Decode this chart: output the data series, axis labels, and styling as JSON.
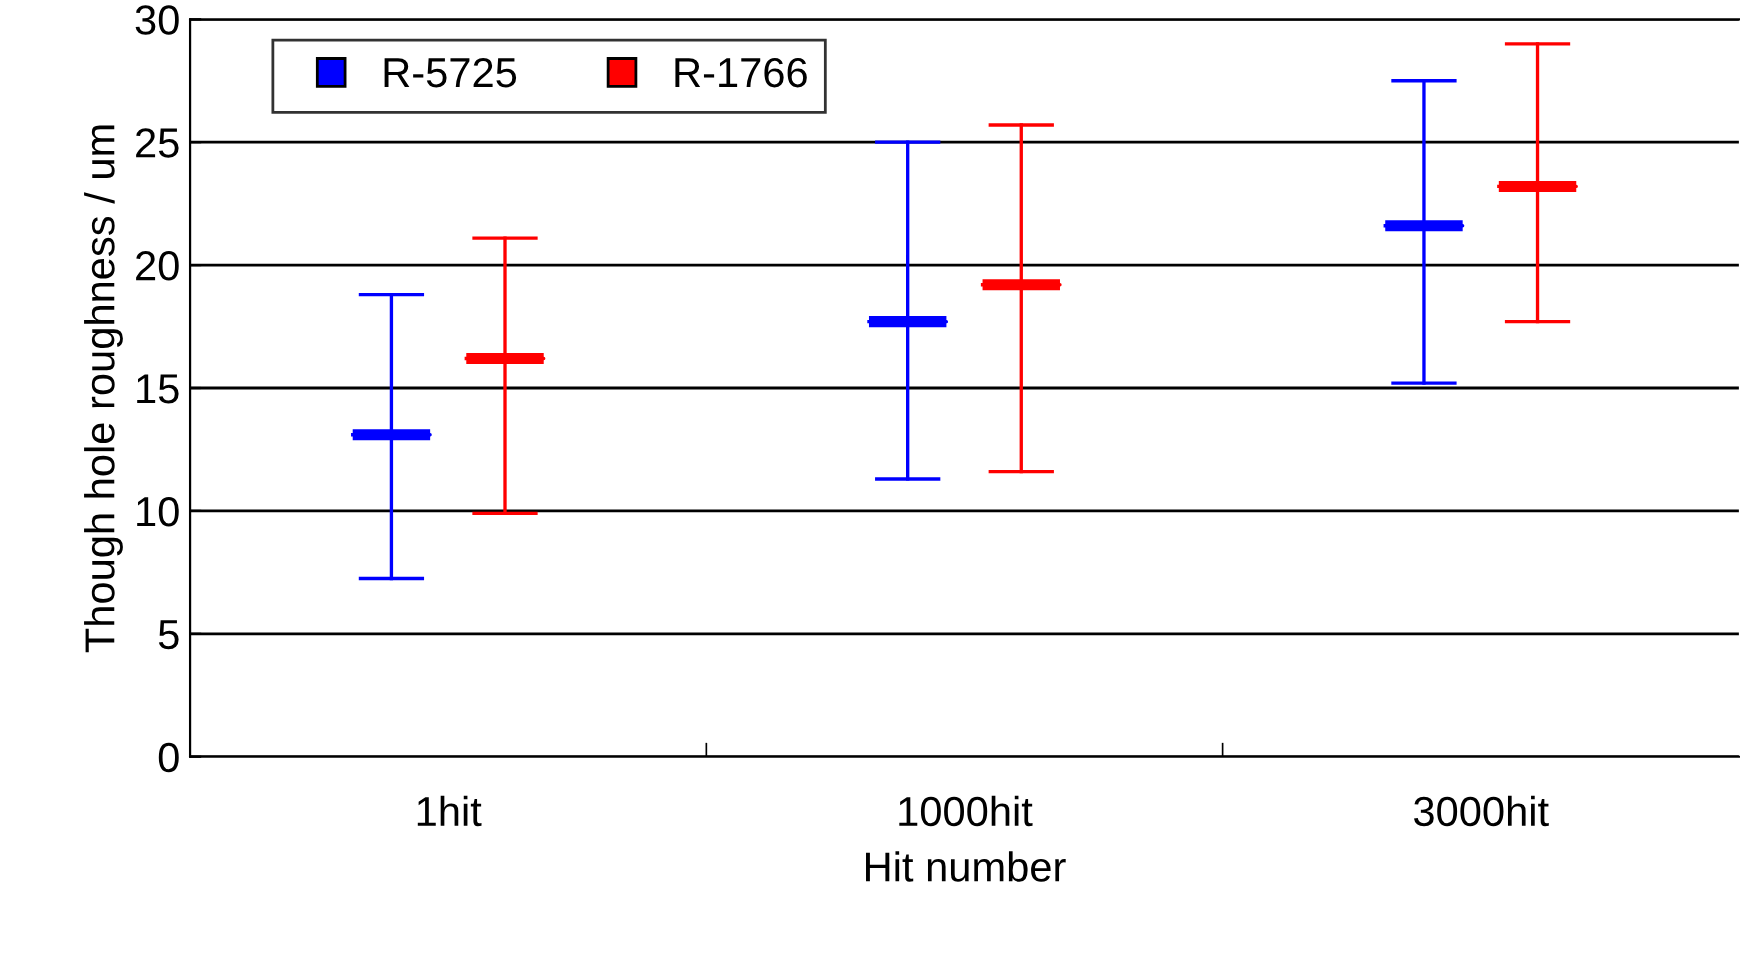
{
  "chart_data": {
    "type": "box",
    "xlabel": "Hit number",
    "ylabel": "Though hole roughness / um",
    "categories": [
      "1hit",
      "1000hit",
      "3000hit"
    ],
    "series": [
      {
        "name": "R-5725",
        "color": "#0000ff",
        "boxes": [
          {
            "low": 7.25,
            "q1": 13.1,
            "median": 13.1,
            "q3": 13.1,
            "high": 18.8
          },
          {
            "low": 11.3,
            "q1": 17.7,
            "median": 17.7,
            "q3": 17.7,
            "high": 25.0
          },
          {
            "low": 15.2,
            "q1": 21.6,
            "median": 21.6,
            "q3": 21.6,
            "high": 27.5
          }
        ]
      },
      {
        "name": "R-1766",
        "color": "#ff0000",
        "boxes": [
          {
            "low": 9.9,
            "q1": 16.2,
            "median": 16.2,
            "q3": 16.2,
            "high": 21.1
          },
          {
            "low": 11.6,
            "q1": 19.2,
            "median": 19.2,
            "q3": 19.2,
            "high": 25.7
          },
          {
            "low": 17.7,
            "q1": 23.2,
            "median": 23.2,
            "q3": 23.2,
            "high": 29.0
          }
        ]
      }
    ],
    "ylim": [
      0,
      30
    ],
    "yticks": [
      0,
      5,
      10,
      15,
      20,
      25,
      30
    ],
    "grid": "y",
    "legend": "top left"
  }
}
